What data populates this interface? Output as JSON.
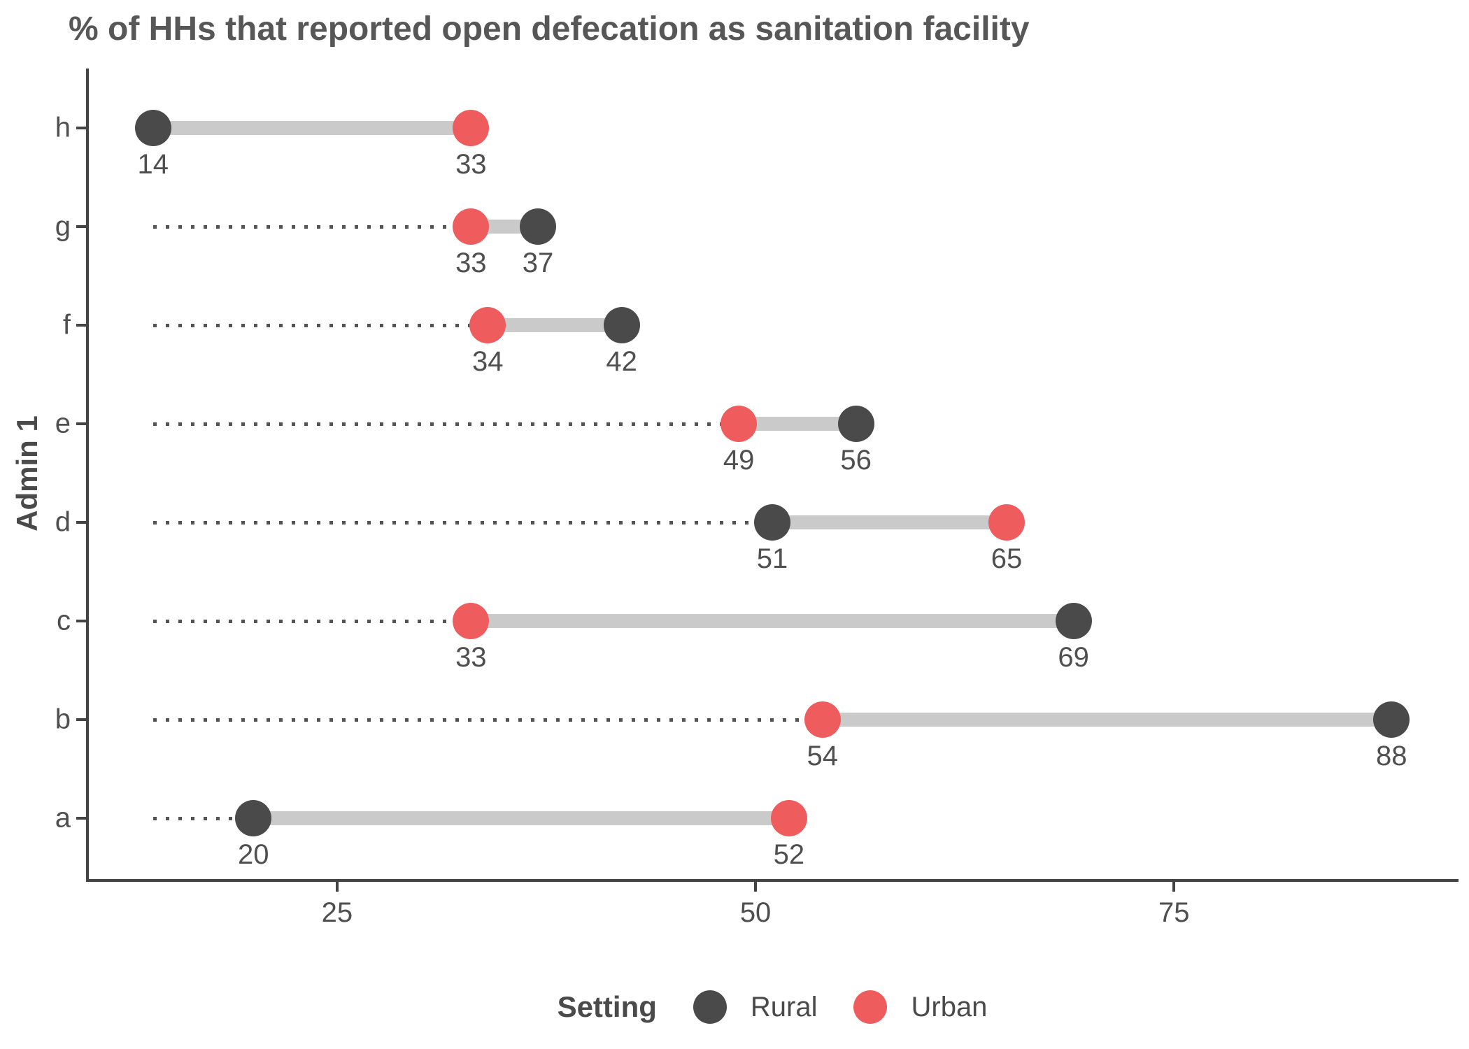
{
  "chart_data": {
    "type": "scatter",
    "variant": "dumbbell",
    "title": "% of HHs that reported open defecation as sanitation facility",
    "xlabel": "",
    "ylabel": "Admin 1",
    "categories": [
      "h",
      "g",
      "f",
      "e",
      "d",
      "c",
      "b",
      "a"
    ],
    "series": [
      {
        "name": "Rural",
        "color": "#4a4a4a",
        "values": [
          14,
          37,
          42,
          56,
          51,
          69,
          88,
          20
        ]
      },
      {
        "name": "Urban",
        "color": "#ee5c5d",
        "values": [
          33,
          33,
          34,
          49,
          65,
          33,
          54,
          52
        ]
      }
    ],
    "xlim": [
      10,
      92
    ],
    "xticks": [
      25,
      50,
      75
    ],
    "grid": "off",
    "value_labels_shown": true,
    "leader_line_start": 14,
    "legend": {
      "title": "Setting",
      "position": "bottom",
      "entries": [
        "Rural",
        "Urban"
      ]
    }
  },
  "colors": {
    "connector": "#cacaca",
    "leader_dotted": "#535353",
    "axis": "#444444",
    "tick_text": "#4f4f4f",
    "title_text": "#575757"
  }
}
